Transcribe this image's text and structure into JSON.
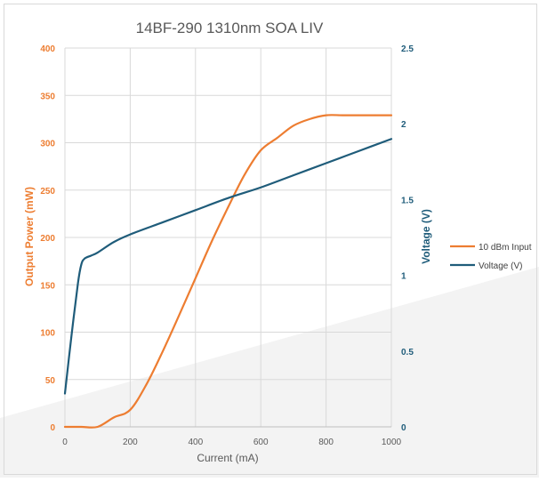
{
  "chart_data": {
    "type": "line",
    "title": "14BF-290 1310nm SOA LIV",
    "xlabel": "Current (mA)",
    "ylabel_left": "Output Power (mW)",
    "ylabel_right": "Voltage (V)",
    "xlim": [
      0,
      1000
    ],
    "ylim_left": [
      0,
      400
    ],
    "ylim_right": [
      0,
      2.5
    ],
    "x_ticks": [
      "0",
      "200",
      "400",
      "600",
      "800",
      "1000"
    ],
    "y_left_ticks": [
      "0",
      "50",
      "100",
      "150",
      "200",
      "250",
      "300",
      "350",
      "400"
    ],
    "y_right_ticks": [
      "0",
      "0.5",
      "1",
      "1.5",
      "2",
      "2.5"
    ],
    "grid": true,
    "legend_position": "right",
    "series": [
      {
        "name": "10 dBm Input",
        "axis": "left",
        "color": "#ED7D31",
        "x": [
          0,
          50,
          100,
          150,
          200,
          250,
          300,
          350,
          400,
          450,
          500,
          550,
          600,
          650,
          700,
          750,
          800,
          850,
          900,
          950,
          1000
        ],
        "values": [
          0,
          0,
          0,
          10,
          18,
          45,
          80,
          118,
          157,
          196,
          232,
          266,
          292,
          305,
          318,
          325,
          329,
          329,
          329,
          329,
          329
        ]
      },
      {
        "name": "Voltage (V)",
        "axis": "right",
        "color": "#1F5C7A",
        "x": [
          0,
          20,
          40,
          50,
          60,
          80,
          100,
          150,
          200,
          300,
          400,
          500,
          600,
          700,
          800,
          900,
          1000
        ],
        "values": [
          0.22,
          0.6,
          0.95,
          1.07,
          1.11,
          1.13,
          1.15,
          1.22,
          1.27,
          1.35,
          1.43,
          1.51,
          1.58,
          1.66,
          1.74,
          1.82,
          1.9
        ]
      }
    ]
  }
}
